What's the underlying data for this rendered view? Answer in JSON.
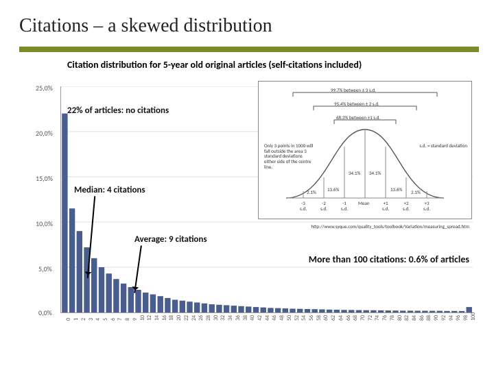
{
  "title": "Citations – a skewed distribution",
  "chart": {
    "title": "Citation distribution for 5-year old original articles (self-citations included)",
    "type": "bar",
    "ylim": [
      0,
      25
    ],
    "ytick_step": 5,
    "ytick_format_suffix": ",0%",
    "bar_color": "#4a5d8f",
    "grid_color": "#dddddd",
    "axis_color": "#999999",
    "x_categories": [
      0,
      1,
      2,
      3,
      4,
      5,
      6,
      7,
      8,
      9,
      10,
      12,
      14,
      16,
      18,
      20,
      22,
      24,
      26,
      28,
      30,
      32,
      34,
      36,
      38,
      40,
      42,
      44,
      46,
      48,
      50,
      52,
      54,
      56,
      58,
      60,
      62,
      64,
      66,
      68,
      70,
      72,
      74,
      76,
      78,
      80,
      82,
      84,
      86,
      88,
      90,
      92,
      94,
      96,
      98,
      100
    ],
    "values_pct": [
      22.0,
      11.5,
      9.0,
      7.2,
      6.0,
      5.0,
      4.3,
      3.7,
      3.2,
      2.8,
      2.5,
      2.2,
      2.0,
      1.8,
      1.6,
      1.4,
      1.3,
      1.2,
      1.1,
      1.0,
      0.9,
      0.85,
      0.8,
      0.75,
      0.7,
      0.65,
      0.6,
      0.55,
      0.5,
      0.48,
      0.45,
      0.42,
      0.4,
      0.38,
      0.36,
      0.34,
      0.32,
      0.3,
      0.28,
      0.27,
      0.26,
      0.25,
      0.24,
      0.23,
      0.22,
      0.21,
      0.2,
      0.2,
      0.19,
      0.19,
      0.18,
      0.18,
      0.17,
      0.17,
      0.16,
      0.6
    ],
    "annotations": {
      "no_citations": "22% of articles: no citations",
      "median": "Median: 4 citations",
      "average": "Average: 9 citations",
      "tail": "More than 100 citations: 0.6% of articles"
    }
  },
  "inset": {
    "type": "normal-curve-diagram",
    "border_color": "#888888",
    "curve_color": "#555555",
    "labels": {
      "top": "99.7% between ± 3 s.d.",
      "mid": "95.4% between ± 2 s.d.",
      "inner": "68.3% between ±1 s.d.",
      "sd_legend": "s.d. = standard deviation",
      "side_note": "Only 3 points in 1000\nwill fall outside the area\n3 standard deviations\neither side of the centre line.",
      "pct_center": "34.1%",
      "pct_2": "13.6%",
      "pct_3": "2.1%",
      "xticks": [
        "-3\ns.d.",
        "-2\ns.d.",
        "-1\ns.d.",
        "Mean",
        "+1\ns.d.",
        "+2\ns.d.",
        "+3\ns.d."
      ]
    },
    "source_url": "http://www.syque.com/quality_tools/toolbook/Variation/measuring_spread.htm"
  }
}
